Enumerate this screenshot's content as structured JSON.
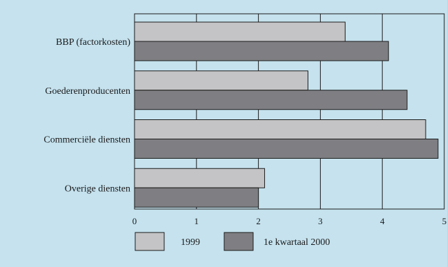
{
  "chart_data": {
    "type": "bar",
    "orientation": "horizontal",
    "categories": [
      "BBP (factorkosten)",
      "Goederenproducenten",
      "Commerciële diensten",
      "Overige diensten"
    ],
    "series": [
      {
        "name": "1999",
        "values": [
          3.4,
          2.8,
          4.7,
          2.1
        ]
      },
      {
        "name": "1e kwartaal 2000",
        "values": [
          4.1,
          4.4,
          4.9,
          2.0
        ]
      }
    ],
    "xlim": [
      0,
      5
    ],
    "xticks": [
      "0",
      "1",
      "2",
      "3",
      "4",
      "5"
    ],
    "grid": "vertical",
    "legend_position": "bottom-left",
    "colors": {
      "background": "#c5e2ee",
      "series_1999": "#c4c4c6",
      "series_2000": "#7f7f83",
      "axes": "#1a1a1a"
    }
  }
}
